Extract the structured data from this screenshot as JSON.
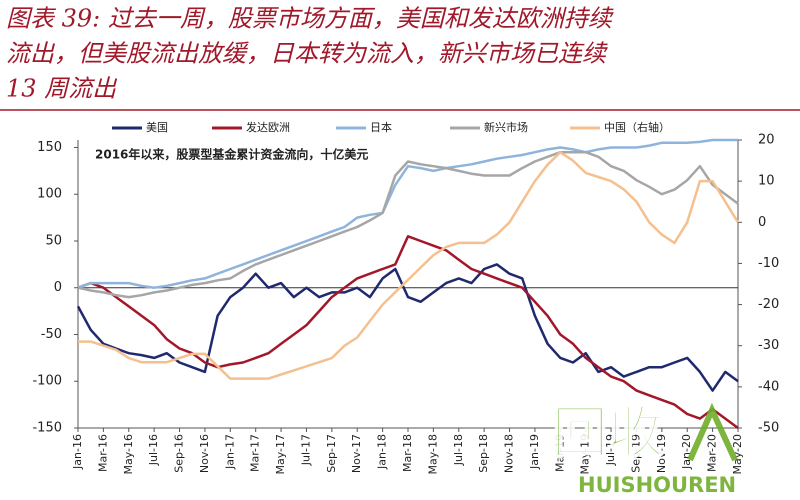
{
  "title_lines": [
    "图表 39: 过去一周，股票市场方面，美国和发达欧洲持续",
    "流出，但美股流出放缓，日本转为流入，新兴市场已连续",
    "13 周流出"
  ],
  "watermark": {
    "text": "回收",
    "subtext": "HUISHOUREN"
  },
  "chart_data": {
    "type": "line",
    "annotation": "2016年以来，股票型基金累计资金流向，十亿美元",
    "categories": [
      "Jan-16",
      null,
      "Mar-16",
      null,
      "May-16",
      null,
      "Jul-16",
      null,
      "Sep-16",
      null,
      "Nov-16",
      null,
      "Jan-17",
      null,
      "Mar-17",
      null,
      "May-17",
      null,
      "Jul-17",
      null,
      "Sep-17",
      null,
      "Nov-17",
      null,
      "Jan-18",
      null,
      "Mar-18",
      null,
      "May-18",
      null,
      "Jul-18",
      null,
      "Sep-18",
      null,
      "Nov-18",
      null,
      "Jan-19",
      null,
      "Mar-19",
      null,
      "May-19",
      null,
      "Jul-19",
      null,
      "Sep-19",
      null,
      "Nov-19",
      null,
      "Jan-20",
      null,
      "Mar-20",
      null,
      "May-20"
    ],
    "series": [
      {
        "name": "美国",
        "color": "#1f2a6e",
        "values": [
          -20,
          -45,
          -60,
          -65,
          -70,
          -72,
          -75,
          -70,
          -80,
          -85,
          -90,
          -30,
          -10,
          0,
          15,
          0,
          5,
          -10,
          0,
          -10,
          -5,
          -5,
          0,
          -10,
          10,
          20,
          -10,
          -15,
          -5,
          5,
          10,
          5,
          20,
          25,
          15,
          10,
          -30,
          -60,
          -75,
          -80,
          -70,
          -90,
          -85,
          -95,
          -90,
          -85,
          -85,
          -80,
          -75,
          -90,
          -110,
          -90,
          -100
        ]
      },
      {
        "name": "发达欧洲",
        "color": "#a3172a",
        "values": [
          0,
          5,
          0,
          -10,
          -20,
          -30,
          -40,
          -55,
          -65,
          -70,
          -80,
          -85,
          -82,
          -80,
          -75,
          -70,
          -60,
          -50,
          -40,
          -25,
          -10,
          0,
          10,
          15,
          20,
          25,
          55,
          50,
          45,
          40,
          30,
          20,
          15,
          10,
          5,
          0,
          -15,
          -30,
          -50,
          -60,
          -75,
          -85,
          -95,
          -100,
          -110,
          -115,
          -120,
          -125,
          -135,
          -140,
          -130,
          -140,
          -150
        ]
      },
      {
        "name": "日本",
        "color": "#8fb4dc",
        "values": [
          0,
          5,
          5,
          5,
          5,
          2,
          0,
          2,
          5,
          8,
          10,
          15,
          20,
          25,
          30,
          35,
          40,
          45,
          50,
          55,
          60,
          65,
          75,
          78,
          80,
          110,
          130,
          128,
          125,
          128,
          130,
          132,
          135,
          138,
          140,
          142,
          145,
          148,
          150,
          148,
          145,
          148,
          150,
          150,
          150,
          152,
          155,
          155,
          155,
          156,
          158,
          158,
          158
        ]
      },
      {
        "name": "新兴市场",
        "color": "#a6a6a6",
        "values": [
          0,
          -3,
          -5,
          -8,
          -10,
          -8,
          -5,
          -3,
          0,
          3,
          5,
          8,
          10,
          18,
          25,
          30,
          35,
          40,
          45,
          50,
          55,
          60,
          65,
          72,
          80,
          120,
          135,
          132,
          130,
          128,
          125,
          122,
          120,
          120,
          120,
          128,
          135,
          140,
          145,
          145,
          145,
          140,
          130,
          125,
          115,
          108,
          100,
          105,
          115,
          130,
          110,
          100,
          90
        ]
      },
      {
        "name": "中国（右轴）",
        "color": "#f5c08f",
        "axis": "y2",
        "values": [
          -29,
          -29,
          -30,
          -31,
          -33,
          -34,
          -34,
          -34,
          -33,
          -32,
          -32,
          -35,
          -38,
          -38,
          -38,
          -38,
          -37,
          -36,
          -35,
          -34,
          -33,
          -30,
          -28,
          -24,
          -20,
          -17,
          -14,
          -11,
          -8,
          -6,
          -5,
          -5,
          -5,
          -3,
          0,
          5,
          10,
          14,
          17,
          15,
          12,
          11,
          10,
          8,
          5,
          0,
          -3,
          -5,
          0,
          10,
          10,
          5,
          0
        ]
      }
    ],
    "ylim": [
      -150,
      158
    ],
    "yticks": [
      -150,
      -100,
      -50,
      0,
      50,
      100,
      150
    ],
    "y2lim": [
      -50,
      20
    ],
    "y2ticks": [
      -50,
      -40,
      -30,
      -20,
      -10,
      0,
      10,
      20
    ],
    "legend": "top"
  }
}
